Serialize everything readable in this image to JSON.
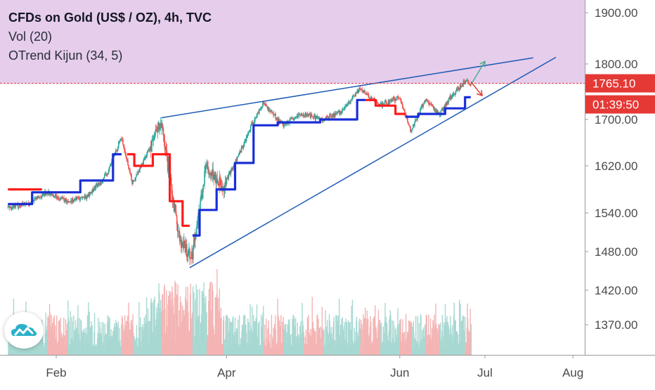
{
  "legend": {
    "title": "CFDs on Gold (US$ / OZ), 4h, TVC",
    "volume": "Vol (20)",
    "indicator": "OTrend Kijun (34, 5)"
  },
  "badges": {
    "price": "1765.10",
    "countdown": "01:39:50"
  },
  "colors": {
    "zone": "#e6cdec",
    "trendline": "#1f5bb5",
    "kijun_up": "#1a2fd6",
    "kijun_down": "#ff1a1a",
    "candle_up": "#26a69a",
    "candle_down": "#ef5350",
    "vol_up": "#a8d8d2",
    "vol_down": "#f4b4b4",
    "price_line": "#e53935",
    "projection_up": "#4caf8a",
    "projection_down": "#e53935"
  },
  "logo_icon": "tradingview-cloud-icon",
  "chart_data": {
    "type": "line",
    "title": "CFDs on Gold (US$ / OZ), 4h, TVC",
    "y_ticks": [
      1900.0,
      1800.0,
      1700.0,
      1620.0,
      1540.0,
      1480.0,
      1420.0,
      1370.0
    ],
    "y_tick_labels": [
      "1900.00",
      "1800.00",
      "1700.00",
      "1620.00",
      "1540.00",
      "1480.00",
      "1420.00",
      "1370.00"
    ],
    "x_ticks": [
      {
        "label": "Feb",
        "date": "2020-02-01"
      },
      {
        "label": "Apr",
        "date": "2020-04-01"
      },
      {
        "label": "Jun",
        "date": "2020-06-01"
      },
      {
        "label": "Jul",
        "date": "2020-07-01"
      },
      {
        "label": "Aug",
        "date": "2020-08-01"
      }
    ],
    "last_price": 1765.1,
    "resistance_zone": {
      "from": 1765.1,
      "to": 1950
    },
    "price_path": [
      {
        "date": "2020-01-15",
        "value": 1550
      },
      {
        "date": "2020-01-22",
        "value": 1555
      },
      {
        "date": "2020-01-29",
        "value": 1575
      },
      {
        "date": "2020-02-05",
        "value": 1560
      },
      {
        "date": "2020-02-12",
        "value": 1568
      },
      {
        "date": "2020-02-19",
        "value": 1605
      },
      {
        "date": "2020-02-24",
        "value": 1670
      },
      {
        "date": "2020-02-28",
        "value": 1590
      },
      {
        "date": "2020-03-04",
        "value": 1640
      },
      {
        "date": "2020-03-09",
        "value": 1695
      },
      {
        "date": "2020-03-13",
        "value": 1570
      },
      {
        "date": "2020-03-16",
        "value": 1490
      },
      {
        "date": "2020-03-20",
        "value": 1475
      },
      {
        "date": "2020-03-25",
        "value": 1620
      },
      {
        "date": "2020-03-31",
        "value": 1585
      },
      {
        "date": "2020-04-06",
        "value": 1645
      },
      {
        "date": "2020-04-10",
        "value": 1690
      },
      {
        "date": "2020-04-14",
        "value": 1730
      },
      {
        "date": "2020-04-21",
        "value": 1690
      },
      {
        "date": "2020-04-28",
        "value": 1710
      },
      {
        "date": "2020-05-05",
        "value": 1700
      },
      {
        "date": "2020-05-12",
        "value": 1715
      },
      {
        "date": "2020-05-18",
        "value": 1755
      },
      {
        "date": "2020-05-25",
        "value": 1725
      },
      {
        "date": "2020-06-01",
        "value": 1740
      },
      {
        "date": "2020-06-05",
        "value": 1680
      },
      {
        "date": "2020-06-10",
        "value": 1735
      },
      {
        "date": "2020-06-15",
        "value": 1710
      },
      {
        "date": "2020-06-19",
        "value": 1740
      },
      {
        "date": "2020-06-24",
        "value": 1770
      },
      {
        "date": "2020-06-26",
        "value": 1765
      }
    ],
    "kijun_segments": [
      {
        "trend": "down",
        "points": [
          {
            "date": "2020-01-15",
            "value": 1580
          },
          {
            "date": "2020-01-27",
            "value": 1580
          }
        ]
      },
      {
        "trend": "up",
        "points": [
          {
            "date": "2020-01-15",
            "value": 1555
          },
          {
            "date": "2020-02-01",
            "value": 1575
          },
          {
            "date": "2020-02-18",
            "value": 1595
          },
          {
            "date": "2020-02-24",
            "value": 1640
          }
        ]
      },
      {
        "trend": "down",
        "points": [
          {
            "date": "2020-02-26",
            "value": 1640
          },
          {
            "date": "2020-03-02",
            "value": 1620
          },
          {
            "date": "2020-03-10",
            "value": 1640
          },
          {
            "date": "2020-03-14",
            "value": 1560
          },
          {
            "date": "2020-03-19",
            "value": 1520
          }
        ]
      },
      {
        "trend": "up",
        "points": [
          {
            "date": "2020-03-20",
            "value": 1505
          },
          {
            "date": "2020-03-25",
            "value": 1545
          },
          {
            "date": "2020-04-01",
            "value": 1580
          },
          {
            "date": "2020-04-07",
            "value": 1625
          },
          {
            "date": "2020-04-14",
            "value": 1690
          },
          {
            "date": "2020-04-24",
            "value": 1695
          },
          {
            "date": "2020-05-14",
            "value": 1700
          },
          {
            "date": "2020-05-20",
            "value": 1735
          }
        ]
      },
      {
        "trend": "down",
        "points": [
          {
            "date": "2020-05-20",
            "value": 1735
          },
          {
            "date": "2020-05-27",
            "value": 1725
          },
          {
            "date": "2020-06-03",
            "value": 1710
          }
        ]
      },
      {
        "trend": "up",
        "points": [
          {
            "date": "2020-06-03",
            "value": 1705
          },
          {
            "date": "2020-06-12",
            "value": 1710
          },
          {
            "date": "2020-06-22",
            "value": 1720
          },
          {
            "date": "2020-06-26",
            "value": 1740
          }
        ]
      }
    ],
    "trendlines": [
      {
        "from": {
          "date": "2020-03-09",
          "value": 1703
        },
        "to": {
          "date": "2020-07-18",
          "value": 1812
        }
      },
      {
        "from": {
          "date": "2020-03-19",
          "value": 1455
        },
        "to": {
          "date": "2020-07-26",
          "value": 1813
        }
      }
    ],
    "projections": [
      {
        "direction": "up",
        "from": {
          "date": "2020-06-26",
          "value": 1762
        },
        "to": {
          "date": "2020-07-01",
          "value": 1805
        }
      },
      {
        "direction": "down",
        "from": {
          "date": "2020-06-26",
          "value": 1768
        },
        "to": {
          "date": "2020-06-30",
          "value": 1743
        }
      }
    ],
    "volume_span": {
      "from": "2020-01-15",
      "to": "2020-06-26"
    }
  }
}
